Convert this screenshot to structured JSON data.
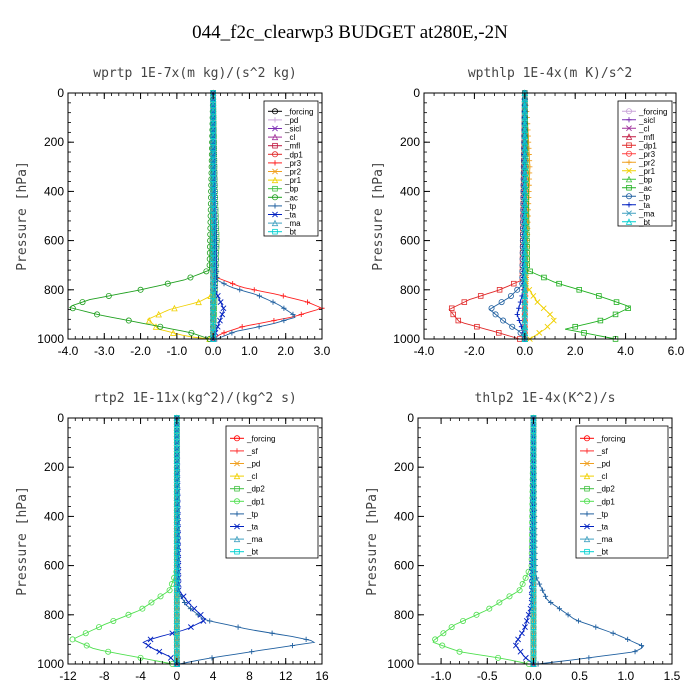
{
  "figure": {
    "title": "044_f2c_clearwp3  BUDGET at280E,-2N"
  },
  "chart_data": [
    {
      "type": "line",
      "title": "wprtp  1E-7x(m kg)/(s^2 kg)",
      "ylabel": "Pressure [hPa]",
      "xlim": [
        -4.0,
        3.0
      ],
      "ylim": [
        1000,
        0
      ],
      "xticks": [
        "-4.0",
        "-3.0",
        "-2.0",
        "-1.0",
        "0.0",
        "1.0",
        "2.0",
        "3.0"
      ],
      "yticks": [
        "0",
        "200",
        "400",
        "600",
        "800",
        "1000"
      ],
      "legend": "top-right",
      "series": [
        {
          "name": "_forcing",
          "color": "#000000",
          "x": [
            0,
            0
          ],
          "y": [
            0,
            1000
          ]
        },
        {
          "name": "_pd",
          "color": "#c8a2d8",
          "x": [
            0,
            0
          ],
          "y": [
            0,
            1000
          ]
        },
        {
          "name": "_sicl",
          "color": "#7b2fb3",
          "x": [
            0,
            0
          ],
          "y": [
            0,
            1000
          ]
        },
        {
          "name": "_cl",
          "color": "#a0309a",
          "x": [
            0,
            0
          ],
          "y": [
            0,
            1000
          ]
        },
        {
          "name": "_mfl",
          "color": "#c01840",
          "x": [
            0,
            0
          ],
          "y": [
            0,
            1000
          ]
        },
        {
          "name": "_dp1",
          "color": "#e02828",
          "x": [
            0,
            0
          ],
          "y": [
            0,
            1000
          ]
        },
        {
          "name": "_pr3",
          "color": "#ff2020",
          "x": [
            0,
            0,
            0.1,
            0.8,
            1.8,
            2.6,
            3.0,
            2.2,
            0.8,
            0.2,
            0
          ],
          "y": [
            0,
            700,
            750,
            790,
            820,
            850,
            875,
            910,
            950,
            980,
            1000
          ]
        },
        {
          "name": "_pr2",
          "color": "#f0a020",
          "x": [
            0,
            0
          ],
          "y": [
            0,
            1000
          ]
        },
        {
          "name": "_pr1",
          "color": "#f0d000",
          "x": [
            0,
            0,
            -0.4,
            -1.2,
            -1.8,
            -1.5,
            -0.7,
            -0.1
          ],
          "y": [
            0,
            820,
            850,
            880,
            920,
            960,
            990,
            1000
          ]
        },
        {
          "name": "_bp",
          "color": "#40c040",
          "x": [
            0,
            0.05,
            0.1,
            0.0
          ],
          "y": [
            0,
            400,
            600,
            1000
          ]
        },
        {
          "name": "_ac",
          "color": "#20a020",
          "x": [
            0,
            -0.1,
            -0.8,
            -2.0,
            -3.4,
            -4.0,
            -3.2,
            -1.8,
            -0.6,
            -0.1
          ],
          "y": [
            0,
            720,
            760,
            800,
            840,
            870,
            900,
            940,
            975,
            1000
          ]
        },
        {
          "name": "_tp",
          "color": "#2060a0",
          "x": [
            0,
            0.1,
            0.5,
            1.2,
            1.8,
            2.3,
            1.6,
            0.6,
            0.1
          ],
          "y": [
            0,
            760,
            790,
            820,
            860,
            910,
            940,
            970,
            1000
          ]
        },
        {
          "name": "_ta",
          "color": "#0020c0",
          "x": [
            0,
            0.05,
            0.3,
            0.1,
            0
          ],
          "y": [
            0,
            800,
            880,
            960,
            1000
          ]
        },
        {
          "name": "_ma",
          "color": "#40a0c0",
          "x": [
            0,
            0
          ],
          "y": [
            0,
            1000
          ]
        },
        {
          "name": "_bt",
          "color": "#00d0d0",
          "x": [
            0,
            0
          ],
          "y": [
            0,
            1000
          ]
        }
      ]
    },
    {
      "type": "line",
      "title": "wpthlp  1E-4x(m K)/s^2",
      "ylabel": "Pressure [hPa]",
      "xlim": [
        -4.0,
        6.0
      ],
      "ylim": [
        1000,
        0
      ],
      "xticks": [
        "-4.0",
        "-2.0",
        "0.0",
        "2.0",
        "4.0",
        "6.0"
      ],
      "yticks": [
        "0",
        "200",
        "400",
        "600",
        "800",
        "1000"
      ],
      "legend": "top-right",
      "series": [
        {
          "name": "_forcing",
          "color": "#c8a2d8",
          "x": [
            0,
            0
          ],
          "y": [
            0,
            1000
          ]
        },
        {
          "name": "_sicl",
          "color": "#7b2fb3",
          "x": [
            0,
            0
          ],
          "y": [
            0,
            1000
          ]
        },
        {
          "name": "_cl",
          "color": "#a0309a",
          "x": [
            0,
            0
          ],
          "y": [
            0,
            1000
          ]
        },
        {
          "name": "_mfl",
          "color": "#c01840",
          "x": [
            0,
            0
          ],
          "y": [
            0,
            1000
          ]
        },
        {
          "name": "_dp1",
          "color": "#e02828",
          "x": [
            0,
            -0.1,
            -1.0,
            -2.2,
            -3.0,
            -2.6,
            -1.2,
            -0.2
          ],
          "y": [
            0,
            760,
            800,
            840,
            880,
            930,
            970,
            1000
          ]
        },
        {
          "name": "_pr3",
          "color": "#ff4040",
          "x": [
            0,
            0
          ],
          "y": [
            0,
            1000
          ]
        },
        {
          "name": "_pr2",
          "color": "#f0a020",
          "x": [
            0,
            0.1,
            0.2,
            0.1,
            0
          ],
          "y": [
            0,
            100,
            300,
            600,
            1000
          ]
        },
        {
          "name": "_pr1",
          "color": "#f0d000",
          "x": [
            0,
            0.05,
            0.5,
            1.2,
            0.8,
            0.2
          ],
          "y": [
            0,
            780,
            850,
            920,
            960,
            1000
          ]
        },
        {
          "name": "_bp",
          "color": "#40c040",
          "x": [
            0,
            0
          ],
          "y": [
            0,
            1000
          ]
        },
        {
          "name": "_ac",
          "color": "#20b020",
          "x": [
            0,
            0.1,
            1.2,
            2.8,
            4.2,
            3.2,
            1.6,
            3.6
          ],
          "y": [
            0,
            720,
            770,
            820,
            870,
            920,
            960,
            1000
          ]
        },
        {
          "name": "_tp",
          "color": "#2060a0",
          "x": [
            0,
            -0.1,
            -0.6,
            -1.4,
            -0.8,
            -0.2,
            0
          ],
          "y": [
            0,
            780,
            830,
            880,
            930,
            970,
            1000
          ]
        },
        {
          "name": "_ta",
          "color": "#0020c0",
          "x": [
            0,
            -0.05,
            -0.3,
            -0.1,
            0
          ],
          "y": [
            0,
            800,
            900,
            960,
            1000
          ]
        },
        {
          "name": "_ma",
          "color": "#40a0c0",
          "x": [
            0,
            0
          ],
          "y": [
            0,
            1000
          ]
        },
        {
          "name": "_bt",
          "color": "#00d0d0",
          "x": [
            0,
            0
          ],
          "y": [
            0,
            1000
          ]
        }
      ]
    },
    {
      "type": "line",
      "title": "rtp2  1E-11x(kg^2)/(kg^2 s)",
      "ylabel": "Pressure [hPa]",
      "xlim": [
        -12,
        16
      ],
      "ylim": [
        1000,
        0
      ],
      "xticks": [
        "-12",
        "-8",
        "-4",
        "0",
        "4",
        "8",
        "12",
        "16"
      ],
      "yticks": [
        "0",
        "200",
        "400",
        "600",
        "800",
        "1000"
      ],
      "legend": "top-right",
      "series": [
        {
          "name": "_forcing",
          "color": "#ff0000",
          "x": [
            0,
            0
          ],
          "y": [
            0,
            1000
          ]
        },
        {
          "name": "_sf",
          "color": "#ff3030",
          "x": [
            0,
            0
          ],
          "y": [
            0,
            1000
          ]
        },
        {
          "name": "_pd",
          "color": "#f0a020",
          "x": [
            0,
            0
          ],
          "y": [
            0,
            1000
          ]
        },
        {
          "name": "_cl",
          "color": "#f0d000",
          "x": [
            0,
            0
          ],
          "y": [
            0,
            1000
          ]
        },
        {
          "name": "_dp2",
          "color": "#40c040",
          "x": [
            0,
            0
          ],
          "y": [
            0,
            1000
          ]
        },
        {
          "name": "_dp1",
          "color": "#50e050",
          "x": [
            0,
            0,
            -0.8,
            -4.0,
            -8.0,
            -11.5,
            -9.0,
            -4.0,
            -0.5
          ],
          "y": [
            0,
            620,
            700,
            780,
            840,
            900,
            940,
            975,
            1000
          ]
        },
        {
          "name": "_tp",
          "color": "#2060a0",
          "x": [
            0,
            0.1,
            1.0,
            3.0,
            8.0,
            13.0,
            15.5,
            10.0,
            3.0,
            0.3
          ],
          "y": [
            0,
            700,
            760,
            820,
            860,
            890,
            910,
            940,
            980,
            1000
          ]
        },
        {
          "name": "_ta",
          "color": "#0020c0",
          "x": [
            0,
            0.2,
            1.5,
            3.2,
            1.0,
            -2.0,
            -3.8,
            -2.5,
            -0.8,
            0
          ],
          "y": [
            0,
            700,
            760,
            820,
            860,
            890,
            910,
            940,
            970,
            1000
          ]
        },
        {
          "name": "_ma",
          "color": "#40a0c0",
          "x": [
            0,
            0
          ],
          "y": [
            0,
            1000
          ]
        },
        {
          "name": "_bt",
          "color": "#00d0d0",
          "x": [
            0,
            0
          ],
          "y": [
            0,
            1000
          ]
        }
      ]
    },
    {
      "type": "line",
      "title": "thlp2  1E-4x(K^2)/s",
      "ylabel": "Pressure [hPa]",
      "xlim": [
        -1.25,
        1.5
      ],
      "ylim": [
        1000,
        0
      ],
      "xticks": [
        "-1.0",
        "-0.5",
        "0.0",
        "0.5",
        "1.0",
        "1.5"
      ],
      "yticks": [
        "0",
        "200",
        "400",
        "600",
        "800",
        "1000"
      ],
      "legend": "top-right",
      "series": [
        {
          "name": "_forcing",
          "color": "#ff0000",
          "x": [
            0,
            0
          ],
          "y": [
            0,
            1000
          ]
        },
        {
          "name": "_sf",
          "color": "#ff3030",
          "x": [
            0,
            0
          ],
          "y": [
            0,
            1000
          ]
        },
        {
          "name": "_pd",
          "color": "#f0a020",
          "x": [
            0,
            0
          ],
          "y": [
            0,
            1000
          ]
        },
        {
          "name": "_cl",
          "color": "#f0d000",
          "x": [
            0,
            0
          ],
          "y": [
            0,
            1000
          ]
        },
        {
          "name": "_dp2",
          "color": "#40c040",
          "x": [
            0,
            0
          ],
          "y": [
            0,
            1000
          ]
        },
        {
          "name": "_dp1",
          "color": "#50e050",
          "x": [
            0,
            -0.02,
            -0.15,
            -0.5,
            -0.85,
            -1.1,
            -0.8,
            -0.3,
            -0.05
          ],
          "y": [
            0,
            600,
            700,
            780,
            840,
            910,
            950,
            980,
            1000
          ]
        },
        {
          "name": "_tp",
          "color": "#2060a0",
          "x": [
            0,
            0.02,
            0.15,
            0.45,
            0.9,
            1.2,
            1.1,
            0.5,
            0.05
          ],
          "y": [
            0,
            640,
            740,
            820,
            880,
            930,
            950,
            980,
            1000
          ]
        },
        {
          "name": "_ta",
          "color": "#0020c0",
          "x": [
            0,
            -0.02,
            -0.1,
            -0.2,
            -0.1,
            0
          ],
          "y": [
            0,
            760,
            860,
            920,
            970,
            1000
          ]
        },
        {
          "name": "_ma",
          "color": "#40a0c0",
          "x": [
            0,
            0
          ],
          "y": [
            0,
            1000
          ]
        },
        {
          "name": "_bt",
          "color": "#00d0d0",
          "x": [
            0,
            0
          ],
          "y": [
            0,
            1000
          ]
        }
      ]
    }
  ]
}
